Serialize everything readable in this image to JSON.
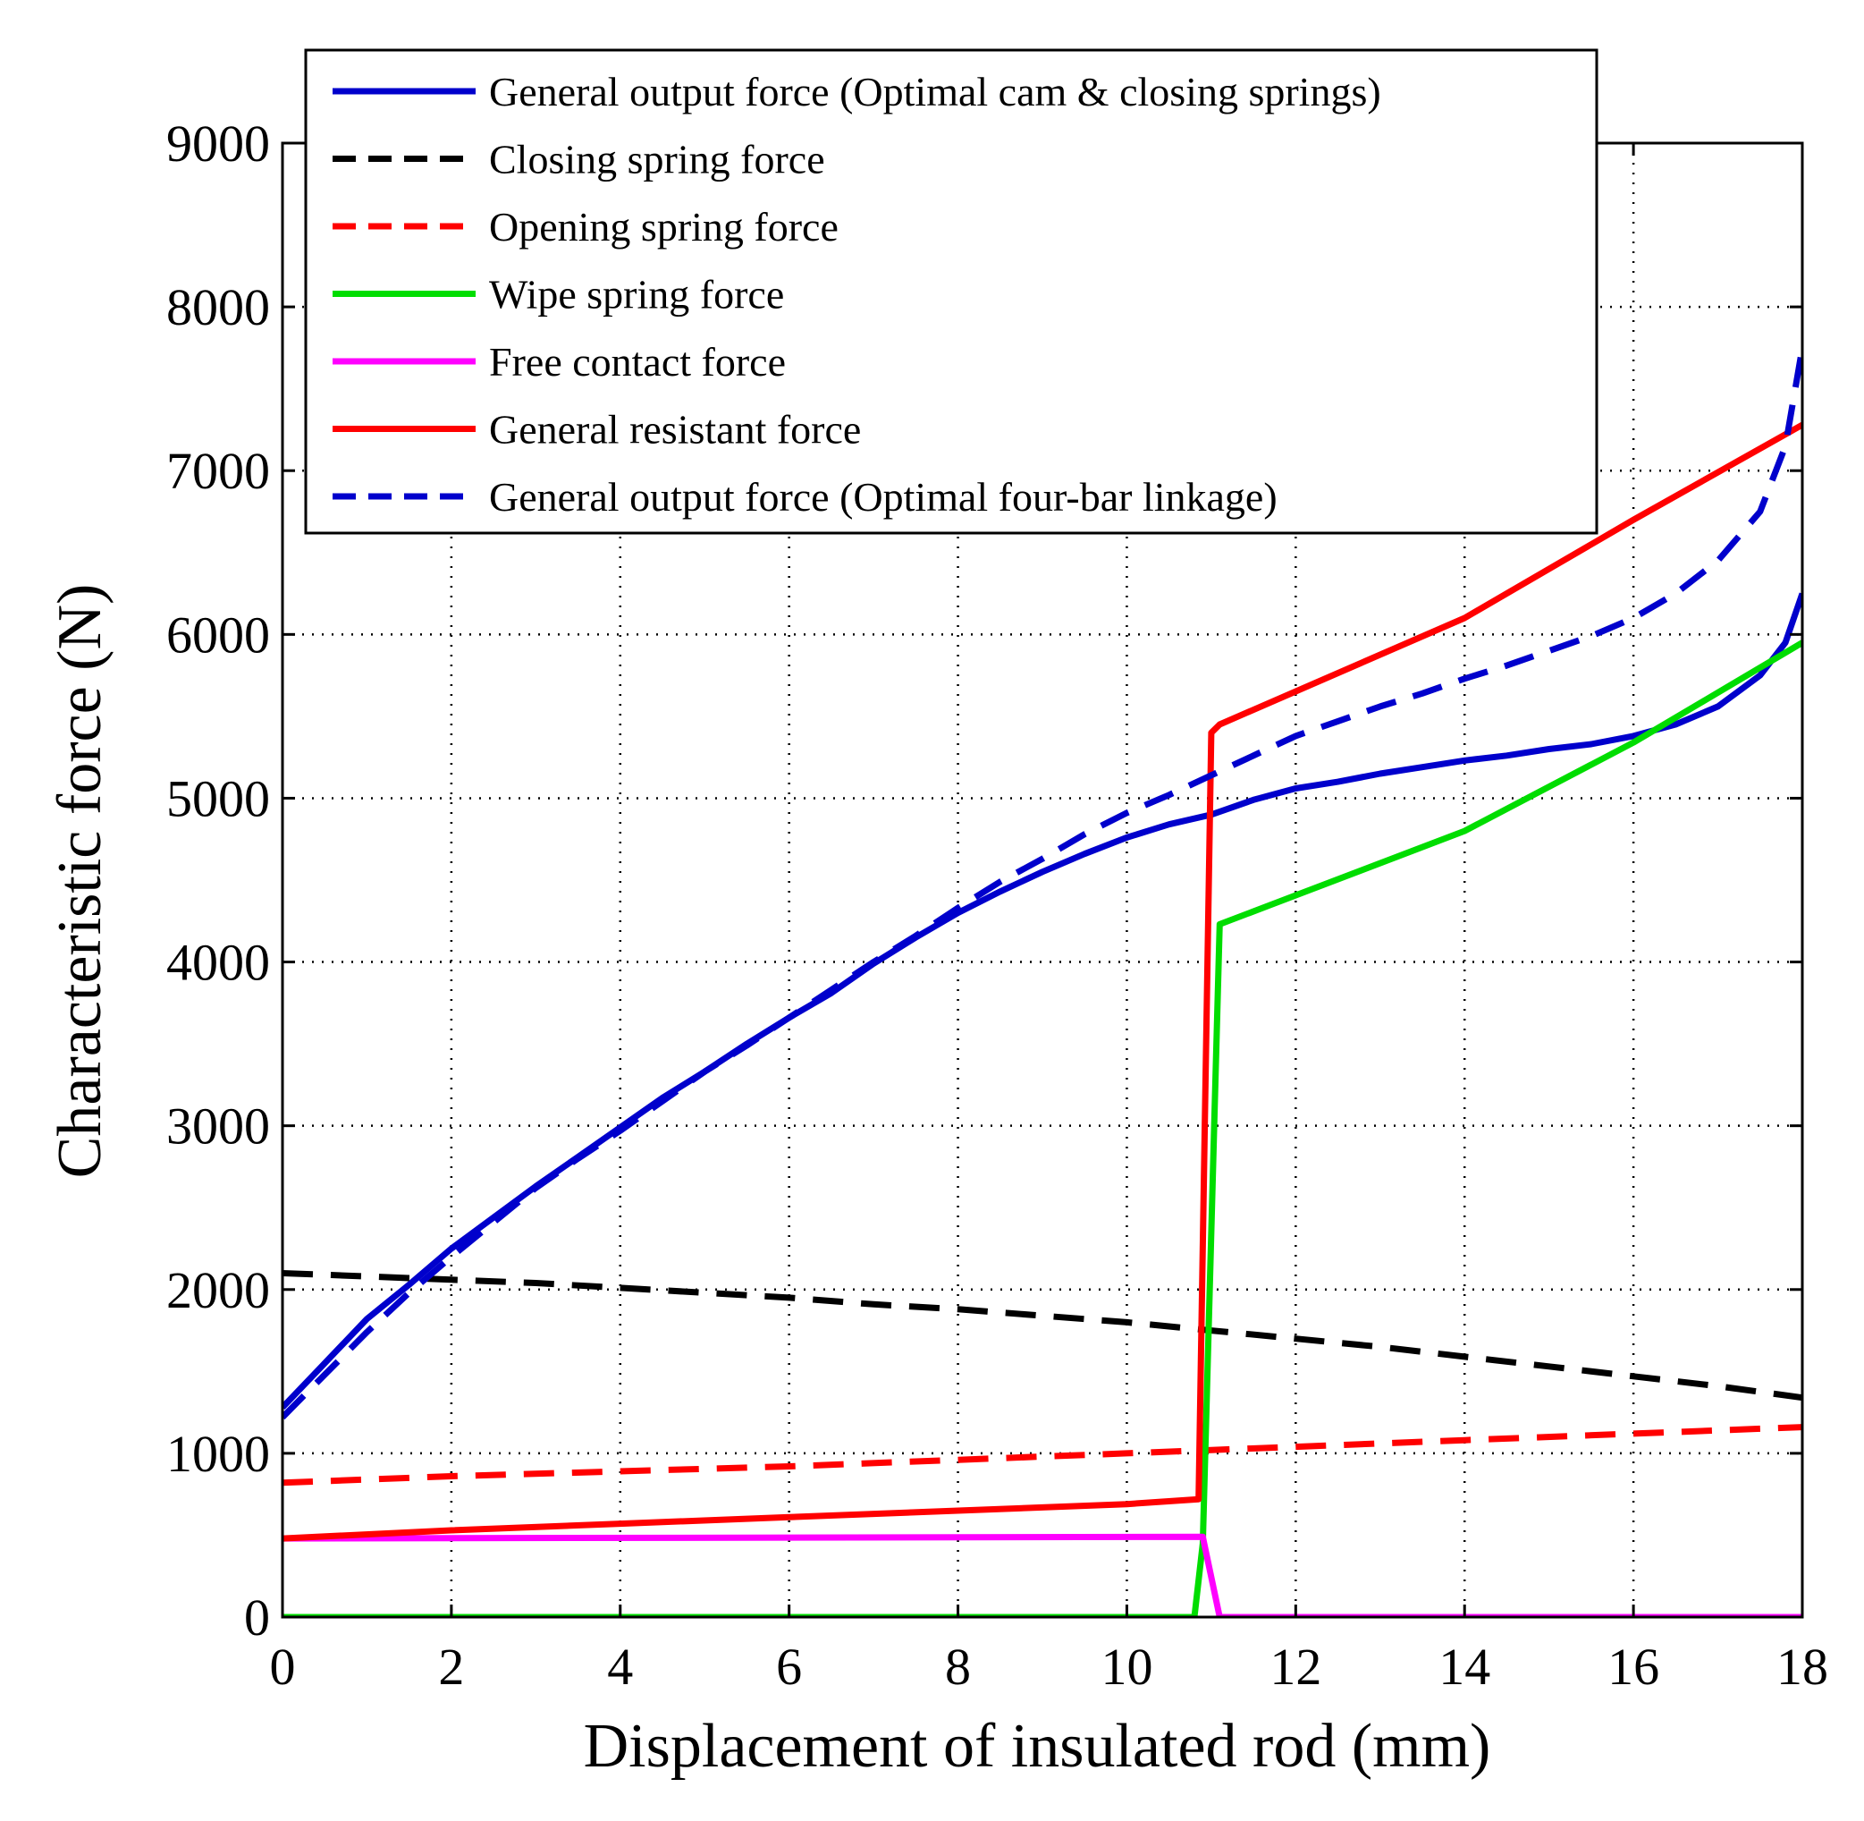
{
  "chart_data": {
    "type": "line",
    "title": "",
    "xlabel": "Displacement of insulated rod (mm)",
    "ylabel": "Characteristic force (N)",
    "xlim": [
      0,
      18
    ],
    "ylim": [
      0,
      9000
    ],
    "xticks": [
      0,
      2,
      4,
      6,
      8,
      10,
      12,
      14,
      16,
      18
    ],
    "yticks": [
      0,
      1000,
      2000,
      3000,
      4000,
      5000,
      6000,
      7000,
      8000,
      9000
    ],
    "grid": true,
    "legend_position": "top",
    "series": [
      {
        "name": "General output force (Optimal cam & closing springs)",
        "color": "#0000cc",
        "style": "solid",
        "x": [
          0,
          0.5,
          1,
          1.5,
          2,
          2.5,
          3,
          3.5,
          4,
          4.5,
          5,
          5.5,
          6,
          6.5,
          7,
          7.5,
          8,
          8.5,
          9,
          9.5,
          10,
          10.5,
          11,
          11.5,
          12,
          12.5,
          13,
          13.5,
          14,
          14.5,
          15,
          15.5,
          16,
          16.5,
          17,
          17.5,
          17.8,
          18
        ],
        "y": [
          1280,
          1550,
          1820,
          2030,
          2250,
          2440,
          2630,
          2810,
          2990,
          3170,
          3330,
          3500,
          3660,
          3810,
          3990,
          4150,
          4300,
          4430,
          4550,
          4660,
          4760,
          4840,
          4900,
          4990,
          5060,
          5100,
          5150,
          5190,
          5230,
          5260,
          5300,
          5330,
          5380,
          5450,
          5560,
          5750,
          5950,
          6250
        ]
      },
      {
        "name": "Closing spring force",
        "color": "#000000",
        "style": "dashed",
        "x": [
          0,
          1,
          2,
          3,
          4,
          5,
          6,
          7,
          8,
          9,
          10,
          11,
          12,
          13,
          14,
          15,
          16,
          17,
          18
        ],
        "y": [
          2100,
          2080,
          2060,
          2040,
          2010,
          1980,
          1950,
          1910,
          1880,
          1840,
          1800,
          1750,
          1700,
          1650,
          1590,
          1530,
          1470,
          1410,
          1340
        ]
      },
      {
        "name": "Opening spring force",
        "color": "#ff0000",
        "style": "dashed",
        "x": [
          0,
          2,
          4,
          6,
          8,
          10,
          11,
          12,
          14,
          16,
          18
        ],
        "y": [
          820,
          860,
          890,
          920,
          960,
          1000,
          1020,
          1040,
          1080,
          1120,
          1160
        ]
      },
      {
        "name": "Wipe spring force",
        "color": "#00dd00",
        "style": "solid",
        "x": [
          0,
          10.8,
          10.9,
          11.1,
          14,
          16,
          18
        ],
        "y": [
          0,
          0,
          450,
          4230,
          4800,
          5340,
          5950
        ]
      },
      {
        "name": "Free contact force",
        "color": "#ff00ff",
        "style": "solid",
        "x": [
          0,
          10.9,
          11.1,
          18
        ],
        "y": [
          480,
          490,
          0,
          0
        ]
      },
      {
        "name": "General resistant force",
        "color": "#ff0000",
        "style": "solid",
        "x": [
          0,
          2,
          4,
          6,
          8,
          10,
          10.85,
          11.0,
          11.1,
          14,
          16,
          18
        ],
        "y": [
          480,
          530,
          570,
          610,
          650,
          690,
          720,
          5400,
          5450,
          6100,
          6700,
          7280
        ]
      },
      {
        "name": "General output force (Optimal four-bar linkage)",
        "color": "#0000cc",
        "style": "dashed",
        "x": [
          0,
          0.5,
          1,
          1.5,
          2,
          2.5,
          3,
          3.5,
          4,
          4.5,
          5,
          5.5,
          6,
          6.5,
          7,
          7.5,
          8,
          8.5,
          9,
          9.5,
          10,
          10.5,
          11,
          11.5,
          12,
          12.5,
          13,
          13.5,
          14,
          14.5,
          15,
          15.5,
          16,
          16.5,
          17,
          17.5,
          17.8,
          18
        ],
        "y": [
          1220,
          1480,
          1740,
          1980,
          2200,
          2410,
          2620,
          2800,
          2970,
          3150,
          3330,
          3490,
          3660,
          3830,
          4000,
          4160,
          4330,
          4490,
          4630,
          4780,
          4910,
          5020,
          5140,
          5260,
          5380,
          5470,
          5560,
          5640,
          5730,
          5810,
          5900,
          5990,
          6100,
          6250,
          6450,
          6750,
          7150,
          7750
        ]
      }
    ]
  }
}
